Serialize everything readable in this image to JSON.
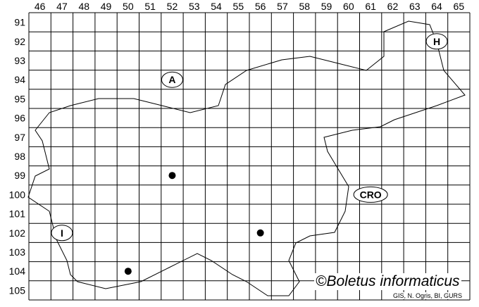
{
  "columns": [
    "46",
    "47",
    "48",
    "49",
    "50",
    "51",
    "52",
    "53",
    "54",
    "55",
    "56",
    "57",
    "58",
    "59",
    "60",
    "61",
    "62",
    "63",
    "64",
    "65"
  ],
  "rows": [
    "91",
    "92",
    "93",
    "94",
    "95",
    "96",
    "97",
    "98",
    "99",
    "100",
    "101",
    "102",
    "103",
    "104",
    "105"
  ],
  "country_labels": [
    {
      "text": "A",
      "col": "52",
      "row": "94"
    },
    {
      "text": "H",
      "col": "64",
      "row": "92"
    },
    {
      "text": "CRO",
      "col": "61",
      "row": "100"
    },
    {
      "text": "I",
      "col": "47",
      "row": "102"
    }
  ],
  "records": [
    {
      "col": "52",
      "row": "99"
    },
    {
      "col": "56",
      "row": "102"
    },
    {
      "col": "50",
      "row": "104"
    }
  ],
  "credit": "©Boletus informaticus",
  "source": "GIS, N. Ogris, BI, GURS"
}
